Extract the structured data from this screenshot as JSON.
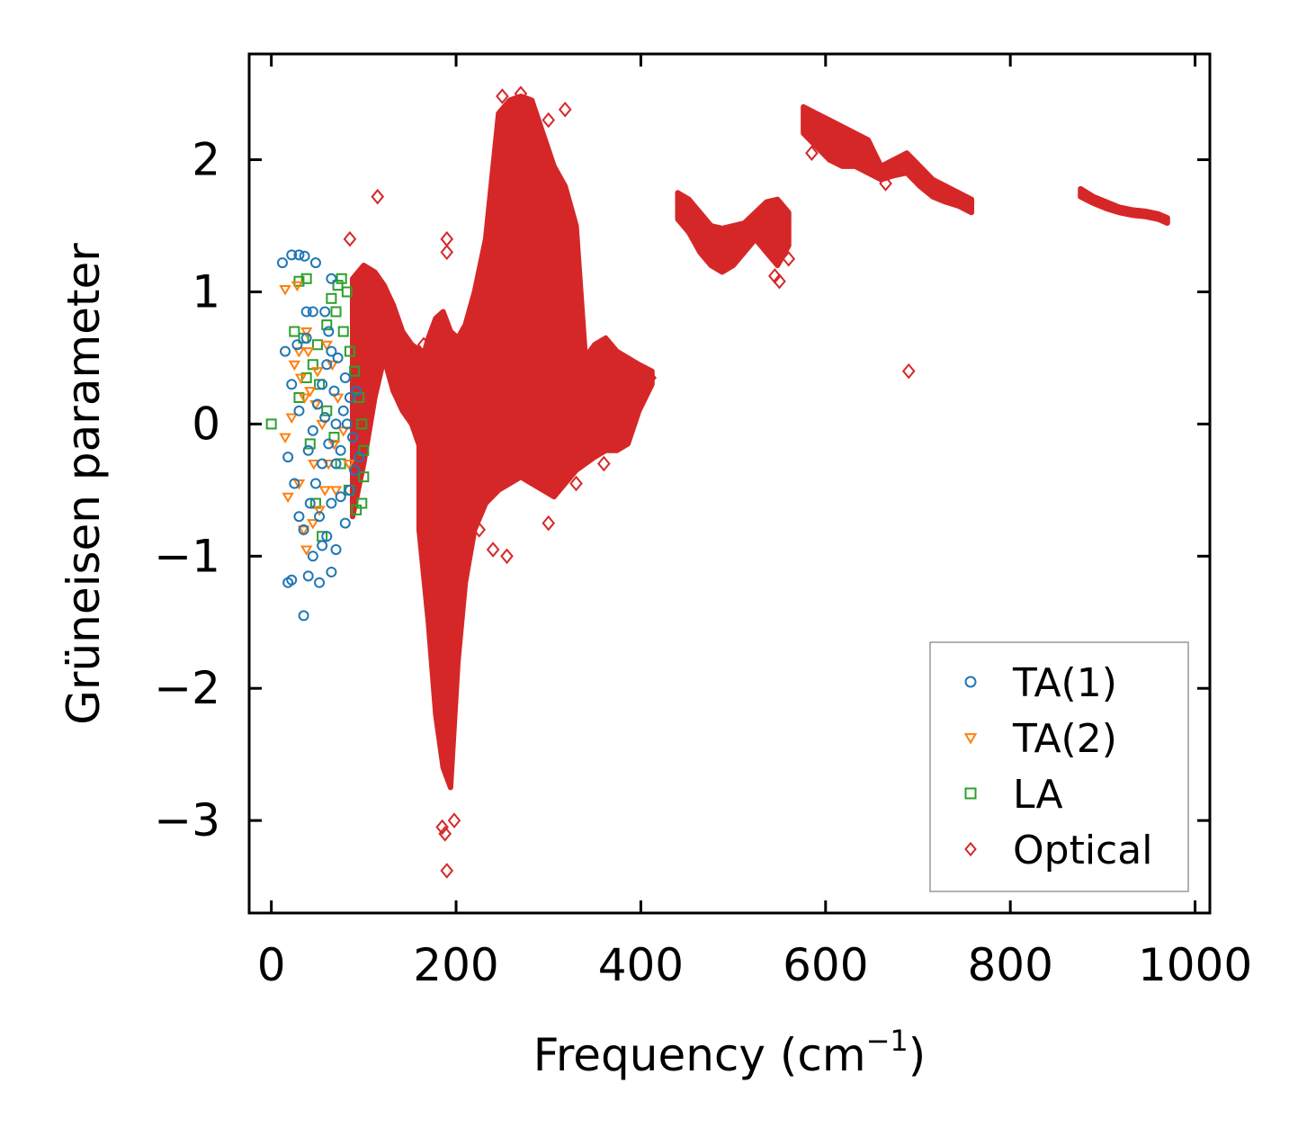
{
  "chart_data": {
    "type": "scatter",
    "title": "",
    "xlabel": "Frequency (cm",
    "xlabel_sup": "−1",
    "xlabel_close": ")",
    "ylabel": "Grüneisen parameter",
    "xlim": [
      -24,
      1016
    ],
    "ylim": [
      -3.7,
      2.8
    ],
    "xticks": [
      0,
      200,
      400,
      600,
      800,
      1000
    ],
    "xtick_labels": [
      "0",
      "200",
      "400",
      "600",
      "800",
      "1000"
    ],
    "yticks": [
      -3,
      -2,
      -1,
      0,
      1,
      2
    ],
    "ytick_labels": [
      "−3",
      "−2",
      "−1",
      "0",
      "1",
      "2"
    ],
    "grid": false,
    "legend_position": "bottom-right",
    "series": [
      {
        "name": "TA(1)",
        "marker": "circle",
        "color": "#1f77b4",
        "points": [
          [
            12,
            1.22
          ],
          [
            22,
            1.28
          ],
          [
            30,
            1.28
          ],
          [
            36,
            1.27
          ],
          [
            48,
            1.22
          ],
          [
            15,
            0.55
          ],
          [
            28,
            0.6
          ],
          [
            38,
            0.65
          ],
          [
            22,
            0.3
          ],
          [
            30,
            0.1
          ],
          [
            18,
            -0.25
          ],
          [
            25,
            -0.45
          ],
          [
            30,
            -0.7
          ],
          [
            35,
            -0.8
          ],
          [
            18,
            -1.2
          ],
          [
            22,
            -1.18
          ],
          [
            40,
            -1.15
          ],
          [
            52,
            -1.2
          ],
          [
            65,
            -1.12
          ],
          [
            35,
            -1.45
          ],
          [
            45,
            -1.0
          ],
          [
            55,
            -0.92
          ],
          [
            60,
            -0.85
          ],
          [
            70,
            -0.95
          ],
          [
            80,
            -0.75
          ],
          [
            65,
            -0.6
          ],
          [
            75,
            -0.55
          ],
          [
            85,
            -0.5
          ],
          [
            90,
            -0.35
          ],
          [
            70,
            0.0
          ],
          [
            78,
            0.1
          ],
          [
            85,
            0.2
          ],
          [
            92,
            0.25
          ],
          [
            80,
            0.35
          ],
          [
            72,
            0.5
          ],
          [
            65,
            0.55
          ],
          [
            60,
            0.45
          ],
          [
            55,
            0.3
          ],
          [
            50,
            0.15
          ],
          [
            45,
            -0.05
          ],
          [
            40,
            -0.2
          ],
          [
            55,
            -0.3
          ],
          [
            62,
            -0.15
          ],
          [
            70,
            -0.3
          ],
          [
            75,
            -0.2
          ],
          [
            82,
            0.0
          ],
          [
            88,
            -0.1
          ],
          [
            95,
            -0.25
          ],
          [
            68,
            0.25
          ],
          [
            58,
            0.05
          ],
          [
            48,
            -0.45
          ],
          [
            42,
            -0.6
          ],
          [
            52,
            -0.7
          ],
          [
            62,
            0.7
          ],
          [
            45,
            0.85
          ],
          [
            58,
            0.85
          ],
          [
            38,
            0.85
          ],
          [
            65,
            1.1
          ]
        ]
      },
      {
        "name": "TA(2)",
        "marker": "triangle",
        "color": "#ff7f0e",
        "points": [
          [
            15,
            1.02
          ],
          [
            28,
            1.05
          ],
          [
            40,
            0.55
          ],
          [
            25,
            0.45
          ],
          [
            32,
            0.35
          ],
          [
            22,
            0.05
          ],
          [
            15,
            -0.1
          ],
          [
            18,
            -0.55
          ],
          [
            30,
            -0.45
          ],
          [
            35,
            -0.8
          ],
          [
            38,
            -0.95
          ],
          [
            45,
            -0.75
          ],
          [
            52,
            -0.65
          ],
          [
            58,
            -0.5
          ],
          [
            62,
            -0.3
          ],
          [
            68,
            -0.15
          ],
          [
            55,
            0.0
          ],
          [
            48,
            0.15
          ],
          [
            42,
            0.25
          ],
          [
            36,
            0.2
          ],
          [
            50,
            0.4
          ],
          [
            60,
            0.6
          ],
          [
            66,
            0.45
          ],
          [
            72,
            0.2
          ],
          [
            78,
            -0.05
          ],
          [
            84,
            -0.3
          ],
          [
            70,
            -0.5
          ],
          [
            46,
            -0.3
          ],
          [
            38,
            0.7
          ],
          [
            30,
            0.55
          ]
        ]
      },
      {
        "name": "LA",
        "marker": "square",
        "color": "#2ca02c",
        "points": [
          [
            0,
            0.0
          ],
          [
            30,
            1.08
          ],
          [
            38,
            1.1
          ],
          [
            72,
            1.05
          ],
          [
            76,
            1.1
          ],
          [
            25,
            0.7
          ],
          [
            35,
            0.65
          ],
          [
            50,
            0.6
          ],
          [
            60,
            0.75
          ],
          [
            70,
            0.85
          ],
          [
            78,
            0.7
          ],
          [
            85,
            0.55
          ],
          [
            90,
            0.4
          ],
          [
            95,
            0.2
          ],
          [
            98,
            0.0
          ],
          [
            100,
            -0.2
          ],
          [
            100,
            -0.4
          ],
          [
            98,
            -0.6
          ],
          [
            92,
            -0.65
          ],
          [
            84,
            -0.5
          ],
          [
            75,
            -0.3
          ],
          [
            68,
            -0.1
          ],
          [
            60,
            0.1
          ],
          [
            52,
            0.3
          ],
          [
            45,
            0.45
          ],
          [
            38,
            0.35
          ],
          [
            30,
            0.2
          ],
          [
            42,
            -0.15
          ],
          [
            55,
            -0.85
          ],
          [
            48,
            -0.6
          ],
          [
            65,
            0.95
          ],
          [
            82,
            1.0
          ]
        ]
      },
      {
        "name": "Optical",
        "marker": "diamond",
        "color": "#d62728",
        "points": [
          [
            85,
            1.4
          ],
          [
            115,
            1.72
          ],
          [
            190,
            1.4
          ],
          [
            190,
            1.3
          ],
          [
            270,
            2.5
          ],
          [
            318,
            2.38
          ],
          [
            250,
            2.48
          ],
          [
            300,
            2.3
          ],
          [
            110,
            0.9
          ],
          [
            140,
            0.6
          ],
          [
            165,
            0.6
          ],
          [
            185,
            -3.05
          ],
          [
            188,
            -3.1
          ],
          [
            198,
            -3.0
          ],
          [
            190,
            -3.38
          ],
          [
            300,
            -0.75
          ],
          [
            255,
            -1.0
          ],
          [
            225,
            -0.8
          ],
          [
            550,
            1.08
          ],
          [
            545,
            1.12
          ],
          [
            560,
            1.25
          ],
          [
            585,
            2.05
          ],
          [
            665,
            1.82
          ],
          [
            690,
            0.4
          ],
          [
            348,
            0.55
          ],
          [
            360,
            -0.3
          ],
          [
            410,
            0.35
          ],
          [
            240,
            -0.95
          ],
          [
            330,
            -0.45
          ]
        ]
      }
    ],
    "optical_bands": [
      {
        "x": [
          88,
          100,
          112,
          122,
          132,
          142,
          152,
          162
        ],
        "upper": [
          1.1,
          1.2,
          1.15,
          1.05,
          0.9,
          0.7,
          0.6,
          0.55
        ],
        "lower": [
          -0.7,
          -0.3,
          0.2,
          0.5,
          0.25,
          0.1,
          0.0,
          -0.2
        ]
      },
      {
        "x": [
          160,
          170,
          178,
          186,
          194,
          202,
          210,
          220,
          232,
          246,
          258,
          270,
          282,
          294,
          306,
          318,
          330,
          340,
          350,
          362,
          374,
          386,
          398,
          412
        ],
        "upper": [
          0.4,
          0.65,
          0.8,
          0.85,
          0.7,
          0.65,
          0.75,
          1.0,
          1.4,
          2.35,
          2.45,
          2.48,
          2.45,
          2.2,
          1.95,
          1.8,
          1.5,
          0.5,
          0.6,
          0.65,
          0.55,
          0.5,
          0.45,
          0.4
        ],
        "lower": [
          -0.8,
          -1.5,
          -2.2,
          -2.6,
          -2.75,
          -1.8,
          -1.2,
          -0.8,
          -0.6,
          -0.5,
          -0.45,
          -0.4,
          -0.45,
          -0.5,
          -0.55,
          -0.45,
          -0.35,
          -0.3,
          -0.25,
          -0.2,
          -0.2,
          -0.15,
          0.1,
          0.3
        ]
      },
      {
        "x": [
          440,
          452,
          464,
          476,
          488,
          500,
          512,
          524,
          536,
          548,
          560
        ],
        "upper": [
          1.75,
          1.7,
          1.6,
          1.5,
          1.48,
          1.5,
          1.52,
          1.6,
          1.68,
          1.7,
          1.6
        ],
        "lower": [
          1.55,
          1.45,
          1.3,
          1.2,
          1.15,
          1.2,
          1.3,
          1.4,
          1.3,
          1.2,
          1.35
        ]
      },
      {
        "x": [
          576,
          590,
          604,
          618,
          632,
          646,
          660,
          674,
          688,
          702,
          716,
          730,
          744,
          758
        ],
        "upper": [
          2.4,
          2.35,
          2.3,
          2.25,
          2.2,
          2.15,
          1.95,
          2.0,
          2.05,
          1.95,
          1.85,
          1.8,
          1.75,
          1.7
        ],
        "lower": [
          2.2,
          2.1,
          2.0,
          1.95,
          1.95,
          1.9,
          1.85,
          1.88,
          1.9,
          1.8,
          1.72,
          1.68,
          1.65,
          1.6
        ]
      },
      {
        "x": [
          876,
          890,
          904,
          918,
          932,
          946,
          960,
          970
        ],
        "upper": [
          1.78,
          1.72,
          1.68,
          1.64,
          1.62,
          1.61,
          1.59,
          1.56
        ],
        "lower": [
          1.72,
          1.67,
          1.63,
          1.6,
          1.58,
          1.57,
          1.55,
          1.52
        ]
      }
    ]
  }
}
